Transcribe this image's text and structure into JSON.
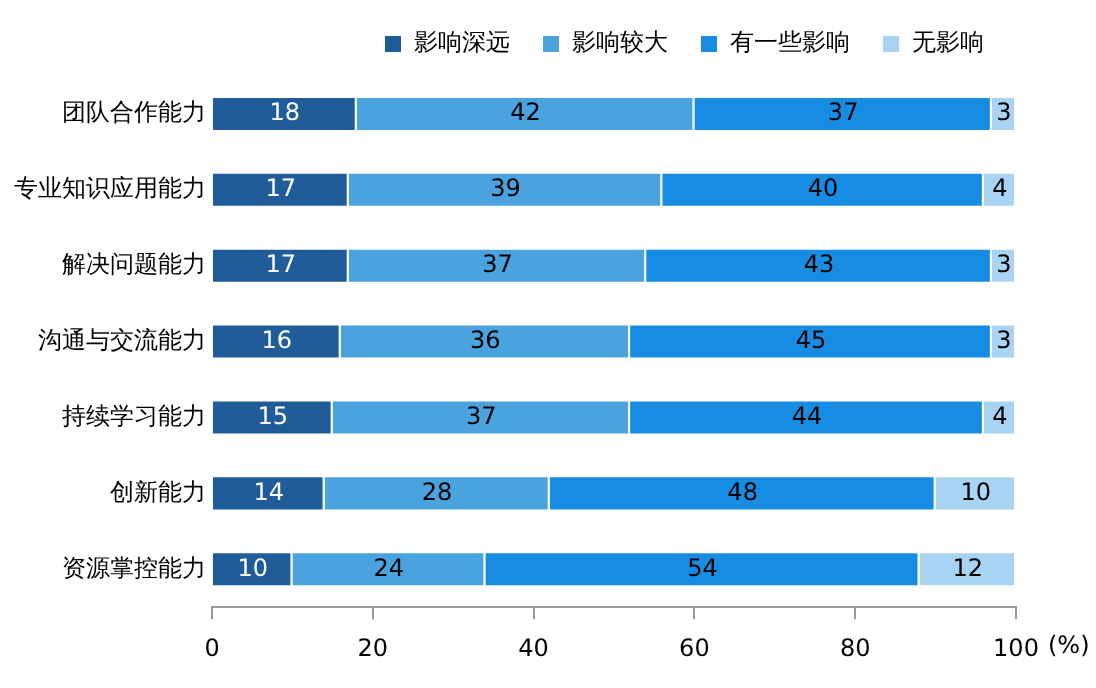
{
  "chart_data": {
    "type": "bar",
    "orientation": "horizontal",
    "stacked": true,
    "xlabel": "(%)",
    "categories": [
      "团队合作能力",
      "专业知识应用能力",
      "解决问题能力",
      "沟通与交流能力",
      "持续学习能力",
      "创新能力",
      "资源掌控能力"
    ],
    "series": [
      {
        "name": "影响深远",
        "color": "#1f5c99",
        "values": [
          18,
          17,
          17,
          16,
          15,
          14,
          10
        ]
      },
      {
        "name": "影响较大",
        "color": "#4aa3df",
        "values": [
          42,
          39,
          37,
          36,
          37,
          28,
          24
        ]
      },
      {
        "name": "有一些影响",
        "color": "#168de2",
        "values": [
          37,
          40,
          43,
          45,
          44,
          48,
          54
        ]
      },
      {
        "name": "无影响",
        "color": "#a9d3f2",
        "values": [
          3,
          4,
          3,
          3,
          4,
          10,
          12
        ]
      }
    ],
    "xlim": [
      0,
      100
    ],
    "xticks": [
      0,
      20,
      40,
      60,
      80,
      100
    ],
    "grid": false,
    "legend": "top",
    "data_labels": true
  }
}
